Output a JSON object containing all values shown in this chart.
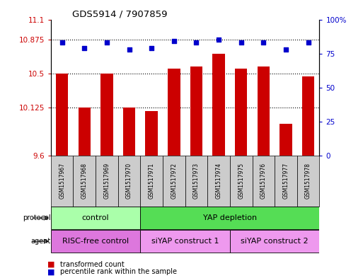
{
  "title": "GDS5914 / 7907859",
  "samples": [
    "GSM1517967",
    "GSM1517968",
    "GSM1517969",
    "GSM1517970",
    "GSM1517971",
    "GSM1517972",
    "GSM1517973",
    "GSM1517974",
    "GSM1517975",
    "GSM1517976",
    "GSM1517977",
    "GSM1517978"
  ],
  "red_values": [
    10.5,
    10.125,
    10.5,
    10.125,
    10.09,
    10.56,
    10.58,
    10.72,
    10.56,
    10.58,
    9.95,
    10.47
  ],
  "blue_values": [
    83,
    79,
    83,
    78,
    79,
    84,
    83,
    85,
    83,
    83,
    78,
    83
  ],
  "ylim_left": [
    9.6,
    11.1
  ],
  "ylim_right": [
    0,
    100
  ],
  "yticks_left": [
    9.6,
    10.125,
    10.5,
    10.875,
    11.1
  ],
  "yticks_right": [
    0,
    25,
    50,
    75,
    100
  ],
  "ytick_labels_left": [
    "9.6",
    "10.125",
    "10.5",
    "10.875",
    "11.1"
  ],
  "ytick_labels_right": [
    "0",
    "25",
    "50",
    "75",
    "100%"
  ],
  "hlines": [
    10.125,
    10.5,
    10.875
  ],
  "bar_color": "#cc0000",
  "dot_color": "#0000cc",
  "bar_bottom": 9.6,
  "protocol_groups": [
    {
      "label": "control",
      "start": 0,
      "end": 3,
      "color": "#aaffaa"
    },
    {
      "label": "YAP depletion",
      "start": 4,
      "end": 11,
      "color": "#55dd55"
    }
  ],
  "agent_groups": [
    {
      "label": "RISC-free control",
      "start": 0,
      "end": 3,
      "color": "#dd77dd"
    },
    {
      "label": "siYAP construct 1",
      "start": 4,
      "end": 7,
      "color": "#ee99ee"
    },
    {
      "label": "siYAP construct 2",
      "start": 8,
      "end": 11,
      "color": "#ee99ee"
    }
  ],
  "sample_box_color": "#cccccc",
  "legend_items": [
    {
      "label": "transformed count",
      "color": "#cc0000"
    },
    {
      "label": "percentile rank within the sample",
      "color": "#0000cc"
    }
  ],
  "background_color": "#ffffff"
}
